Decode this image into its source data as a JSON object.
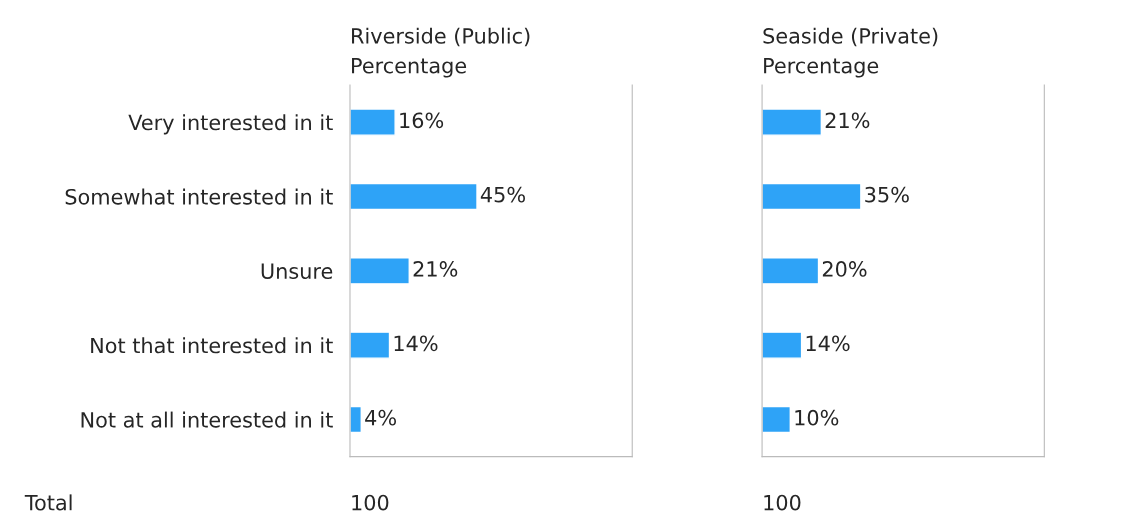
{
  "chart_data": [
    {
      "type": "bar",
      "orientation": "horizontal",
      "title": "Riverside (Public)",
      "subtitle": "Percentage",
      "categories": [
        "Very interested in it",
        "Somewhat interested in it",
        "Unsure",
        "Not that interested in it",
        "Not at all interested in it"
      ],
      "values": [
        16,
        45,
        21,
        14,
        4
      ],
      "color": "#2ea3f7",
      "xlim": [
        0,
        100
      ],
      "data_labels": true,
      "value_labels": [
        "16%",
        "45%",
        "21%",
        "14%",
        "4%"
      ],
      "tick_labels": "y",
      "annotations": [
        "Total",
        "100"
      ]
    },
    {
      "type": "bar",
      "orientation": "horizontal",
      "title": "Seaside (Private)",
      "subtitle": "Percentage",
      "categories": [
        null,
        null,
        null,
        null,
        null
      ],
      "values": [
        21,
        35,
        20,
        14,
        10
      ],
      "color": "#2ea3f7",
      "xlim": [
        0,
        100
      ],
      "data_labels": true,
      "value_labels": [
        "21%",
        "35%",
        "20%",
        "14%",
        "10%"
      ],
      "tick_labels": false,
      "annotations": [
        "100"
      ]
    }
  ]
}
